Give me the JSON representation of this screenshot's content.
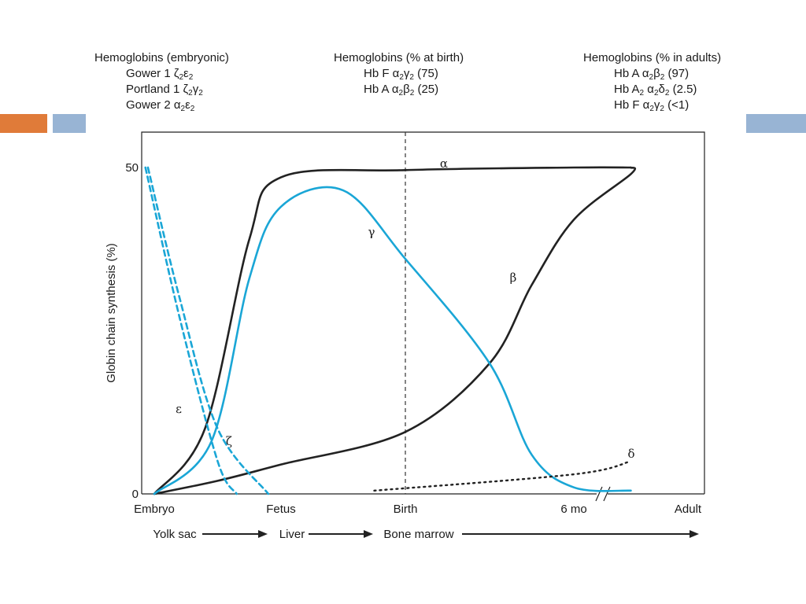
{
  "hemoglobins": {
    "embryonic": {
      "title": "Hemoglobins (embryonic)",
      "items": [
        [
          {
            "t": "Gower 1 ζ"
          },
          {
            "s": "2"
          },
          {
            "t": "ε"
          },
          {
            "s": "2"
          }
        ],
        [
          {
            "t": "Portland 1 ζ"
          },
          {
            "s": "2"
          },
          {
            "t": "γ"
          },
          {
            "s": "2"
          }
        ],
        [
          {
            "t": "Gower 2 α"
          },
          {
            "s": "2"
          },
          {
            "t": "ε"
          },
          {
            "s": "2"
          }
        ]
      ]
    },
    "birth": {
      "title": "Hemoglobins (% at birth)",
      "items": [
        [
          {
            "t": "Hb F α"
          },
          {
            "s": "2"
          },
          {
            "t": "γ"
          },
          {
            "s": "2"
          },
          {
            "t": " (75)"
          }
        ],
        [
          {
            "t": "Hb A α"
          },
          {
            "s": "2"
          },
          {
            "t": "β"
          },
          {
            "s": "2"
          },
          {
            "t": " (25)"
          }
        ]
      ]
    },
    "adult": {
      "title": "Hemoglobins (% in adults)",
      "items": [
        [
          {
            "t": "Hb A α"
          },
          {
            "s": "2"
          },
          {
            "t": "β"
          },
          {
            "s": "2"
          },
          {
            "t": " (97)"
          }
        ],
        [
          {
            "t": "Hb A"
          },
          {
            "s": "2"
          },
          {
            "t": " α"
          },
          {
            "s": "2"
          },
          {
            "t": "δ"
          },
          {
            "s": "2"
          },
          {
            "t": " (2.5)"
          }
        ],
        [
          {
            "t": "Hb F α"
          },
          {
            "s": "2"
          },
          {
            "t": "γ"
          },
          {
            "s": "2"
          },
          {
            "t": " (<1)"
          }
        ]
      ]
    }
  },
  "colors": {
    "orange_accent": "#e07b39",
    "blue_accent": "#98b4d4",
    "black_curve": "#222222",
    "cyan_curve": "#1aa6d6"
  },
  "chart_data": {
    "type": "line",
    "title": "",
    "ylabel": "Globin chain synthesis (%)",
    "xlabel": "",
    "ylim": [
      0,
      50
    ],
    "yticks": [
      "0",
      "50"
    ],
    "x_categories": [
      "Embryo",
      "Fetus",
      "Birth",
      "6 mo",
      "Adult"
    ],
    "x_axis_break_after": "6 mo",
    "birth_marker": "dashed vertical line at Birth",
    "grid": false,
    "site_sequence": [
      "Yolk sac",
      "Liver",
      "Bone marrow"
    ],
    "series": [
      {
        "name": "α",
        "color": "#222222",
        "style": "solid",
        "points": [
          [
            0,
            0
          ],
          [
            0.4,
            10
          ],
          [
            0.75,
            39
          ],
          [
            1,
            48.5
          ],
          [
            2,
            49.6
          ],
          [
            3,
            50
          ],
          [
            3.5,
            50
          ]
        ]
      },
      {
        "name": "β",
        "color": "#222222",
        "style": "solid",
        "points": [
          [
            0,
            0
          ],
          [
            0.5,
            2
          ],
          [
            1,
            4.5
          ],
          [
            2,
            9.5
          ],
          [
            2.5,
            20
          ],
          [
            2.75,
            32
          ],
          [
            3,
            42
          ],
          [
            3.5,
            49
          ],
          [
            3.5,
            50
          ]
        ]
      },
      {
        "name": "γ",
        "color": "#1aa6d6",
        "style": "solid",
        "points": [
          [
            0,
            0
          ],
          [
            0.45,
            8
          ],
          [
            0.75,
            33
          ],
          [
            1,
            44
          ],
          [
            1.5,
            46.5
          ],
          [
            2,
            36
          ],
          [
            2.5,
            20
          ],
          [
            2.75,
            6
          ],
          [
            3,
            1
          ],
          [
            3.5,
            0.5
          ]
        ]
      },
      {
        "name": "ε",
        "color": "#1aa6d6",
        "style": "dashed",
        "points": [
          [
            -0.07,
            50
          ],
          [
            0.2,
            27
          ],
          [
            0.5,
            5
          ],
          [
            0.65,
            0
          ]
        ]
      },
      {
        "name": "ζ",
        "color": "#1aa6d6",
        "style": "dashed",
        "points": [
          [
            -0.05,
            50
          ],
          [
            0.2,
            30
          ],
          [
            0.5,
            10
          ],
          [
            0.9,
            0
          ]
        ]
      },
      {
        "name": "δ",
        "color": "#222222",
        "style": "dotted",
        "points": [
          [
            1.75,
            0.5
          ],
          [
            3,
            3
          ],
          [
            3.5,
            5
          ]
        ]
      }
    ]
  }
}
